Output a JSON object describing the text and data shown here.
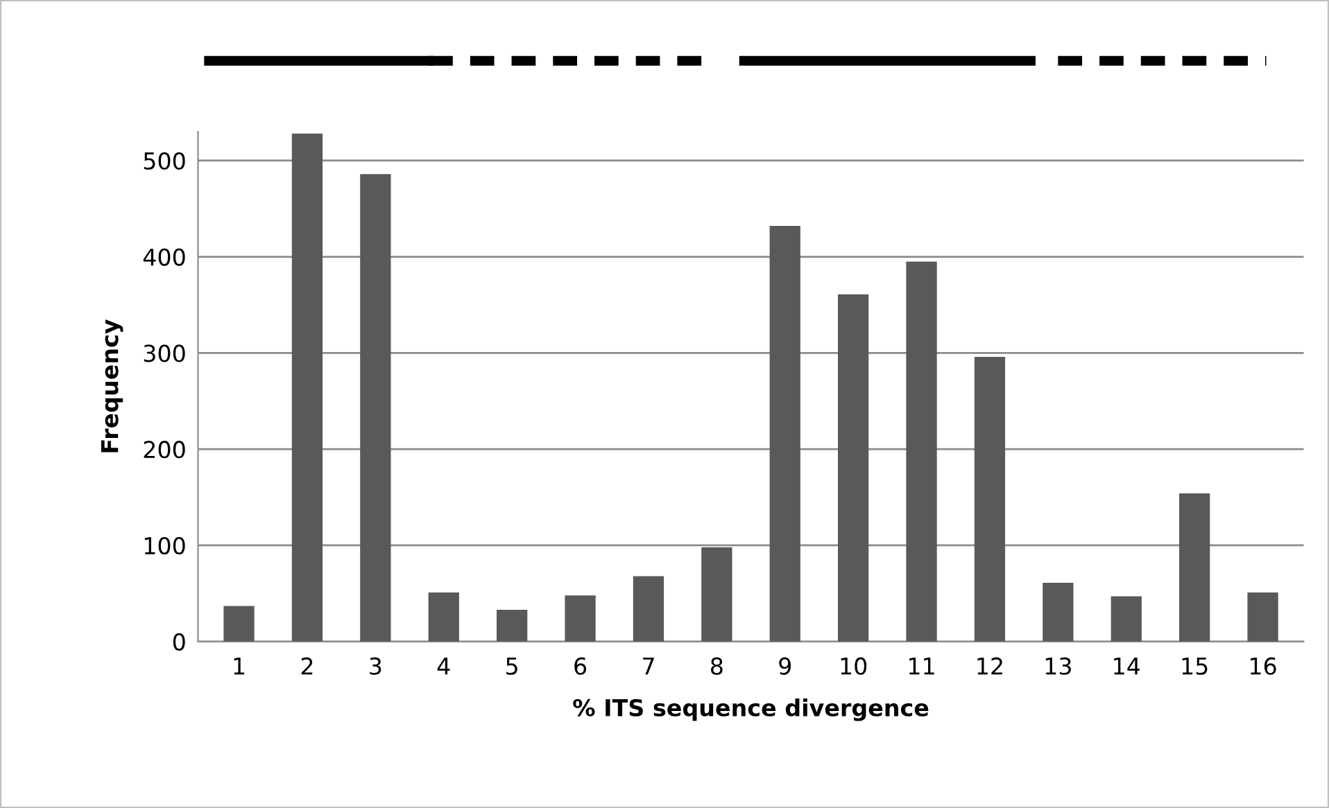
{
  "chart_data": {
    "type": "bar",
    "xlabel": "% ITS sequence divergence",
    "ylabel": "Frequency",
    "categories": [
      "1",
      "2",
      "3",
      "4",
      "5",
      "6",
      "7",
      "8",
      "9",
      "10",
      "11",
      "12",
      "13",
      "14",
      "15",
      "16"
    ],
    "values": [
      37,
      528,
      486,
      51,
      33,
      48,
      68,
      98,
      432,
      361,
      395,
      296,
      61,
      47,
      154,
      51
    ],
    "color": "#595959",
    "ylim": [
      0,
      530
    ],
    "yticks": [
      0,
      100,
      200,
      300,
      400,
      500
    ],
    "grid": "y"
  }
}
